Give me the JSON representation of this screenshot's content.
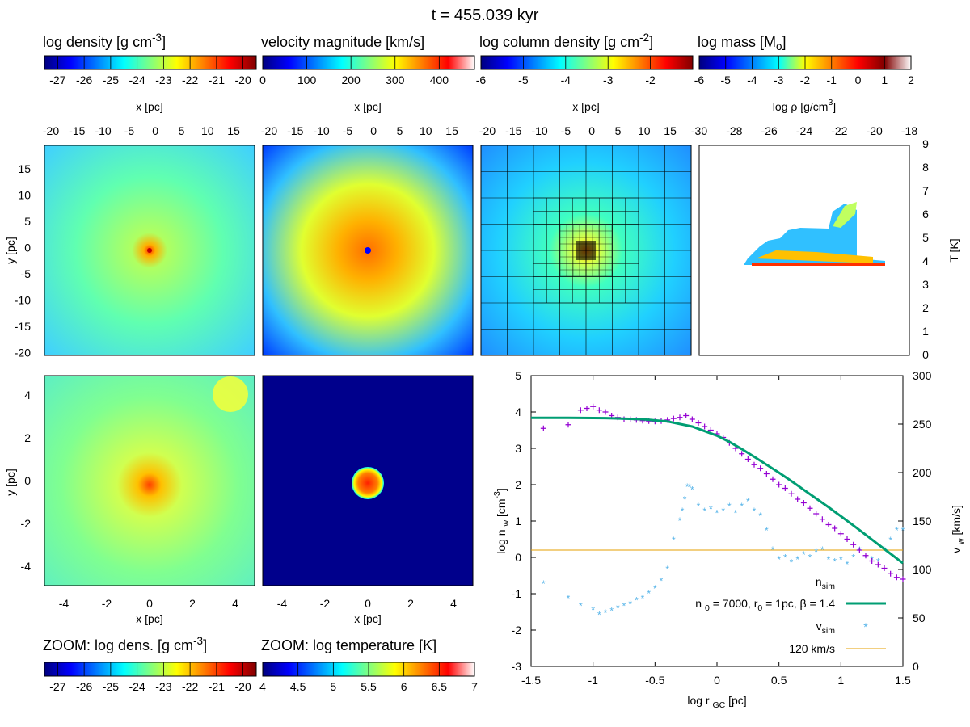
{
  "figure": {
    "title": "t = 455.039 kyr"
  },
  "colors": {
    "jet": [
      "#00007f",
      "#0000ff",
      "#0080ff",
      "#00ffff",
      "#80ff80",
      "#ffff00",
      "#ff8000",
      "#ff0000",
      "#800000"
    ],
    "vel": [
      "#00007f",
      "#0000ff",
      "#0080ff",
      "#00ffff",
      "#80ff80",
      "#ffff00",
      "#ff8000",
      "#ff0000",
      "#ffffff"
    ],
    "mass": [
      "#00007f",
      "#0000ff",
      "#0080ff",
      "#00ffff",
      "#ffff00",
      "#ff8000",
      "#ff0000",
      "#800000",
      "#ffffff"
    ],
    "purple": "#9400d3",
    "teal": "#009e73",
    "lightblue": "#56b4e9",
    "orange": "#e69f00"
  },
  "colorbars": [
    {
      "id": "cb-density",
      "label_pre": "log density [g cm",
      "label_sup": "-3",
      "label_post": "]",
      "ticks": [
        "-27",
        "-26",
        "-25",
        "-24",
        "-23",
        "-22",
        "-21",
        "-20"
      ]
    },
    {
      "id": "cb-velocity",
      "label_pre": "velocity magnitude [km/s]",
      "label_sup": "",
      "label_post": "",
      "ticks": [
        "0",
        "100",
        "200",
        "300",
        "400"
      ]
    },
    {
      "id": "cb-column",
      "label_pre": "log column density [g cm",
      "label_sup": "-2",
      "label_post": "]",
      "ticks": [
        "-6",
        "-5",
        "-4",
        "-3",
        "-2"
      ]
    },
    {
      "id": "cb-mass",
      "label_pre": "log mass [M",
      "label_sub": "o",
      "label_post": "]",
      "ticks": [
        "-6",
        "-5",
        "-4",
        "-3",
        "-2",
        "-1",
        "0",
        "1",
        "2"
      ]
    },
    {
      "id": "cb-zoom-density",
      "label_pre": "ZOOM: log dens. [g cm",
      "label_sup": "-3",
      "label_post": "]",
      "ticks": [
        "-27",
        "-26",
        "-25",
        "-24",
        "-23",
        "-22",
        "-21",
        "-20"
      ]
    },
    {
      "id": "cb-zoom-temp",
      "label_pre": "ZOOM: log temperature [K]",
      "label_sup": "",
      "label_post": "",
      "ticks": [
        "4",
        "4.5",
        "5",
        "5.5",
        "6",
        "6.5",
        "7"
      ]
    }
  ],
  "top_panels": {
    "xlabel": "x [pc]",
    "ylabel": "y [pc]",
    "xticks": [
      "-20",
      "-15",
      "-10",
      "-5",
      "0",
      "5",
      "10",
      "15"
    ],
    "yticks": [
      "15",
      "10",
      "5",
      "0",
      "-5",
      "-10",
      "-15",
      "-20"
    ],
    "phase_xlabel": "log ρ [g/cm",
    "phase_xlabel_sup": "3",
    "phase_xlabel_post": "]",
    "phase_xticks": [
      "-30",
      "-28",
      "-26",
      "-24",
      "-22",
      "-20",
      "-18"
    ],
    "phase_ylabel": "T [K]",
    "phase_yticks": [
      "0",
      "1",
      "2",
      "3",
      "4",
      "5",
      "6",
      "7",
      "8",
      "9"
    ]
  },
  "zoom_panels": {
    "xlabel": "x [pc]",
    "ylabel": "y [pc]",
    "xticks": [
      "-4",
      "-2",
      "0",
      "2",
      "4"
    ],
    "yticks": [
      "4",
      "2",
      "0",
      "-2",
      "-4"
    ]
  },
  "chart_data": {
    "type": "scatter",
    "xlabel": "log r",
    "xlabel_sub": "GC",
    "xlabel_post": "[pc]",
    "ylabel": "log n",
    "ylabel_sub": "w",
    "ylabel_post": "[cm",
    "ylabel_sup": "-3",
    "ylabel_end": "]",
    "y2label": "v",
    "y2label_sub": "w",
    "y2label_post": "[km/s]",
    "xlim": [
      -1.5,
      1.5
    ],
    "ylim": [
      -3,
      5
    ],
    "y2lim": [
      0,
      300
    ],
    "xticks": [
      "-1.5",
      "-1",
      "-0.5",
      "0",
      "0.5",
      "1",
      "1.5"
    ],
    "yticks": [
      "5",
      "4",
      "3",
      "2",
      "1",
      "0",
      "-1",
      "-2",
      "-3"
    ],
    "y2ticks": [
      "300",
      "250",
      "200",
      "150",
      "100",
      "50",
      "0"
    ],
    "series": [
      {
        "name": "n",
        "name_sub": "sim",
        "axis": "y",
        "x": [
          -1.4,
          -1.2,
          -1.1,
          -1.05,
          -1.0,
          -0.95,
          -0.9,
          -0.85,
          -0.8,
          -0.75,
          -0.7,
          -0.65,
          -0.6,
          -0.55,
          -0.5,
          -0.45,
          -0.4,
          -0.35,
          -0.3,
          -0.25,
          -0.2,
          -0.15,
          -0.1,
          -0.05,
          0.0,
          0.05,
          0.1,
          0.15,
          0.2,
          0.25,
          0.3,
          0.35,
          0.4,
          0.45,
          0.5,
          0.55,
          0.6,
          0.65,
          0.7,
          0.75,
          0.8,
          0.85,
          0.9,
          0.95,
          1.0,
          1.05,
          1.1,
          1.15,
          1.2,
          1.25,
          1.3,
          1.35,
          1.4,
          1.45,
          1.5
        ],
        "y": [
          3.55,
          3.65,
          4.05,
          4.1,
          4.15,
          4.05,
          4.0,
          3.9,
          3.85,
          3.8,
          3.8,
          3.78,
          3.76,
          3.75,
          3.74,
          3.75,
          3.78,
          3.82,
          3.85,
          3.9,
          3.8,
          3.7,
          3.6,
          3.5,
          3.4,
          3.3,
          3.15,
          3.0,
          2.85,
          2.7,
          2.55,
          2.45,
          2.3,
          2.15,
          2.0,
          1.9,
          1.75,
          1.6,
          1.5,
          1.35,
          1.2,
          1.05,
          0.9,
          0.8,
          0.65,
          0.5,
          0.35,
          0.2,
          0.05,
          -0.1,
          -0.2,
          -0.3,
          -0.45,
          -0.55,
          -0.6
        ]
      },
      {
        "name": "n",
        "name_sub": "0",
        "label": "n_0 = 7000, r_0 = 1pc, β = 1.4",
        "legend_a": " = 7000, r",
        "legend_sub2": "0",
        "legend_b": " = 1pc,  β = 1.4",
        "axis": "y",
        "x": [
          -1.5,
          -1.2,
          -0.9,
          -0.6,
          -0.4,
          -0.2,
          0.0,
          0.1,
          0.2,
          0.3,
          0.4,
          0.5,
          0.6,
          0.7,
          0.8,
          0.9,
          1.0,
          1.1,
          1.2,
          1.3,
          1.4,
          1.5
        ],
        "y": [
          3.84,
          3.84,
          3.83,
          3.8,
          3.74,
          3.6,
          3.35,
          3.18,
          2.98,
          2.77,
          2.55,
          2.33,
          2.1,
          1.86,
          1.62,
          1.38,
          1.13,
          0.88,
          0.62,
          0.36,
          0.1,
          -0.16
        ]
      },
      {
        "name": "v",
        "name_sub": "sim",
        "axis": "y2",
        "x": [
          -1.4,
          -1.2,
          -1.1,
          -1.0,
          -0.95,
          -0.9,
          -0.85,
          -0.8,
          -0.75,
          -0.7,
          -0.65,
          -0.6,
          -0.55,
          -0.5,
          -0.45,
          -0.4,
          -0.35,
          -0.3,
          -0.28,
          -0.26,
          -0.24,
          -0.22,
          -0.2,
          -0.15,
          -0.1,
          -0.05,
          0.0,
          0.05,
          0.1,
          0.15,
          0.2,
          0.25,
          0.3,
          0.35,
          0.4,
          0.45,
          0.5,
          0.55,
          0.6,
          0.65,
          0.7,
          0.75,
          0.8,
          0.85,
          0.9,
          0.95,
          1.0,
          1.05,
          1.1,
          1.15,
          1.2,
          1.25,
          1.3,
          1.35,
          1.4,
          1.45,
          1.5
        ],
        "y": [
          85,
          70,
          62,
          58,
          53,
          55,
          57,
          60,
          62,
          64,
          68,
          70,
          75,
          80,
          88,
          100,
          130,
          150,
          160,
          172,
          185,
          185,
          182,
          165,
          160,
          162,
          158,
          160,
          165,
          158,
          165,
          170,
          160,
          155,
          140,
          120,
          110,
          112,
          107,
          110,
          115,
          112,
          118,
          120,
          110,
          108,
          110,
          105,
          112,
          120,
          112,
          110,
          108,
          120,
          130,
          140,
          140
        ]
      },
      {
        "name": "120 km/s",
        "axis": "y2",
        "x": [
          -1.5,
          1.5
        ],
        "y": [
          120,
          120
        ]
      }
    ]
  }
}
